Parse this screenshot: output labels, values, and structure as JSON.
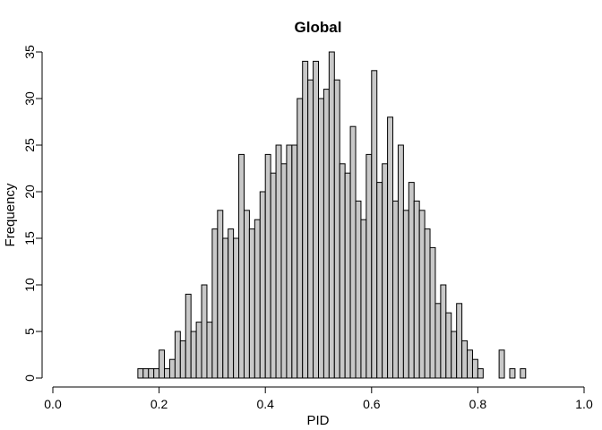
{
  "chart_data": {
    "type": "bar",
    "title": "Global",
    "xlabel": "PID",
    "ylabel": "Frequency",
    "xlim": [
      0,
      1
    ],
    "ylim": [
      0,
      35
    ],
    "xticks": [
      "0.0",
      "0.2",
      "0.4",
      "0.6",
      "0.8",
      "1.0"
    ],
    "xtick_values": [
      0,
      0.2,
      0.4,
      0.6,
      0.8,
      1.0
    ],
    "yticks": [
      "0",
      "5",
      "10",
      "15",
      "20",
      "25",
      "30",
      "35"
    ],
    "ytick_values": [
      0,
      5,
      10,
      15,
      20,
      25,
      30,
      35
    ],
    "bin_width": 0.01,
    "bin_starts": [
      0.16,
      0.17,
      0.18,
      0.19,
      0.2,
      0.21,
      0.22,
      0.23,
      0.24,
      0.25,
      0.26,
      0.27,
      0.28,
      0.29,
      0.3,
      0.31,
      0.32,
      0.33,
      0.34,
      0.35,
      0.36,
      0.37,
      0.38,
      0.39,
      0.4,
      0.41,
      0.42,
      0.43,
      0.44,
      0.45,
      0.46,
      0.47,
      0.48,
      0.49,
      0.5,
      0.51,
      0.52,
      0.53,
      0.54,
      0.55,
      0.56,
      0.57,
      0.58,
      0.59,
      0.6,
      0.61,
      0.62,
      0.63,
      0.64,
      0.65,
      0.66,
      0.67,
      0.68,
      0.69,
      0.7,
      0.71,
      0.72,
      0.73,
      0.74,
      0.75,
      0.76,
      0.77,
      0.78,
      0.79,
      0.8,
      0.84,
      0.86,
      0.88
    ],
    "values": [
      1,
      1,
      1,
      1,
      3,
      1,
      2,
      5,
      4,
      9,
      5,
      6,
      10,
      6,
      16,
      18,
      15,
      16,
      15,
      24,
      18,
      16,
      17,
      20,
      24,
      22,
      25,
      23,
      25,
      25,
      30,
      34,
      32,
      34,
      30,
      31,
      35,
      32,
      23,
      22,
      27,
      19,
      17,
      24,
      33,
      21,
      23,
      28,
      19,
      25,
      18,
      21,
      19,
      18,
      16,
      14,
      8,
      10,
      7,
      5,
      8,
      4,
      3,
      2,
      1,
      3,
      1,
      1
    ],
    "bar_color": "#c8c8c8",
    "grid": false
  }
}
